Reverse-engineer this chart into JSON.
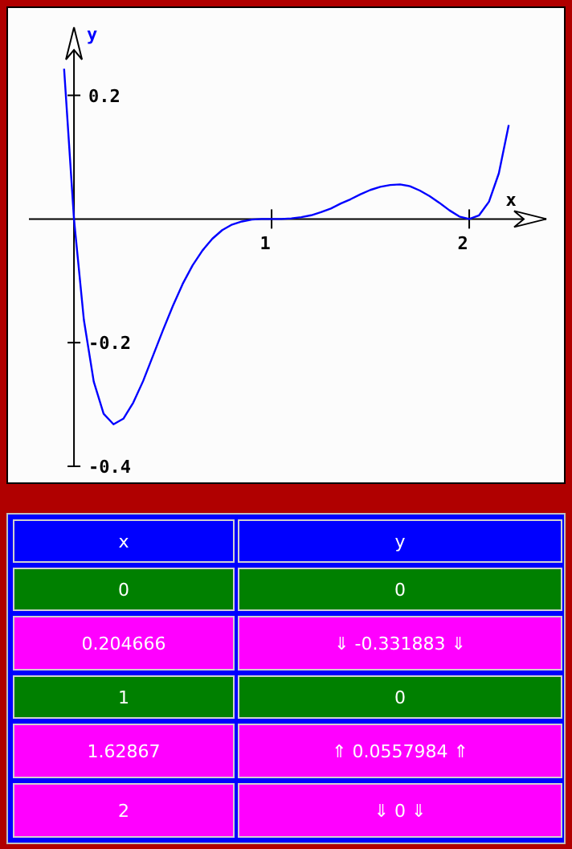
{
  "chart_data": [
    {
      "type": "line",
      "xlabel": "x",
      "ylabel": "y",
      "xlim": [
        -0.228,
        2.39
      ],
      "ylim": [
        -0.4,
        0.31
      ],
      "xticks": [
        1,
        2
      ],
      "yticks": [
        0.2,
        -0.2,
        -0.4
      ],
      "grid": false,
      "series": [
        {
          "type": "line",
          "color": "#0000ff",
          "marker": "none",
          "x": [
            -0.05,
            0,
            0.05,
            0.1,
            0.15,
            0.2,
            0.25,
            0.3,
            0.35,
            0.4,
            0.45,
            0.5,
            0.55,
            0.6,
            0.65,
            0.7,
            0.75,
            0.8,
            0.85,
            0.9,
            0.95,
            1,
            1.05,
            1.1,
            1.15,
            1.2,
            1.25,
            1.3,
            1.35,
            1.4,
            1.45,
            1.5,
            1.55,
            1.6,
            1.65,
            1.7,
            1.75,
            1.8,
            1.85,
            1.9,
            1.95,
            2,
            2.05,
            2.1,
            2.15,
            2.2
          ],
          "values": [
            0.243,
            0,
            -0.163,
            -0.263,
            -0.315,
            -0.332,
            -0.323,
            -0.297,
            -0.262,
            -0.221,
            -0.18,
            -0.141,
            -0.105,
            -0.075,
            -0.051,
            -0.032,
            -0.018,
            -0.009,
            -0.004,
            -0.001,
            0,
            0,
            0,
            0.001,
            0.003,
            0.006,
            0.011,
            0.017,
            0.025,
            0.032,
            0.04,
            0.047,
            0.052,
            0.055,
            0.056,
            0.053,
            0.046,
            0.037,
            0.026,
            0.014,
            0.004,
            0,
            0.006,
            0.028,
            0.074,
            0.152
          ]
        }
      ]
    },
    {
      "type": "other",
      "annotations": [
        "x",
        "y",
        "0",
        "0",
        "0.204666",
        "⇓ -0.331883 ⇓",
        "1",
        "0",
        "1.62867",
        "⇑ 0.0557984 ⇑",
        "2",
        "⇓ 0 ⇓"
      ],
      "colors": [
        "#0000ff",
        "#008000",
        "#ff00ff",
        "#008000",
        "#ff00ff",
        "#ff00ff"
      ]
    }
  ]
}
